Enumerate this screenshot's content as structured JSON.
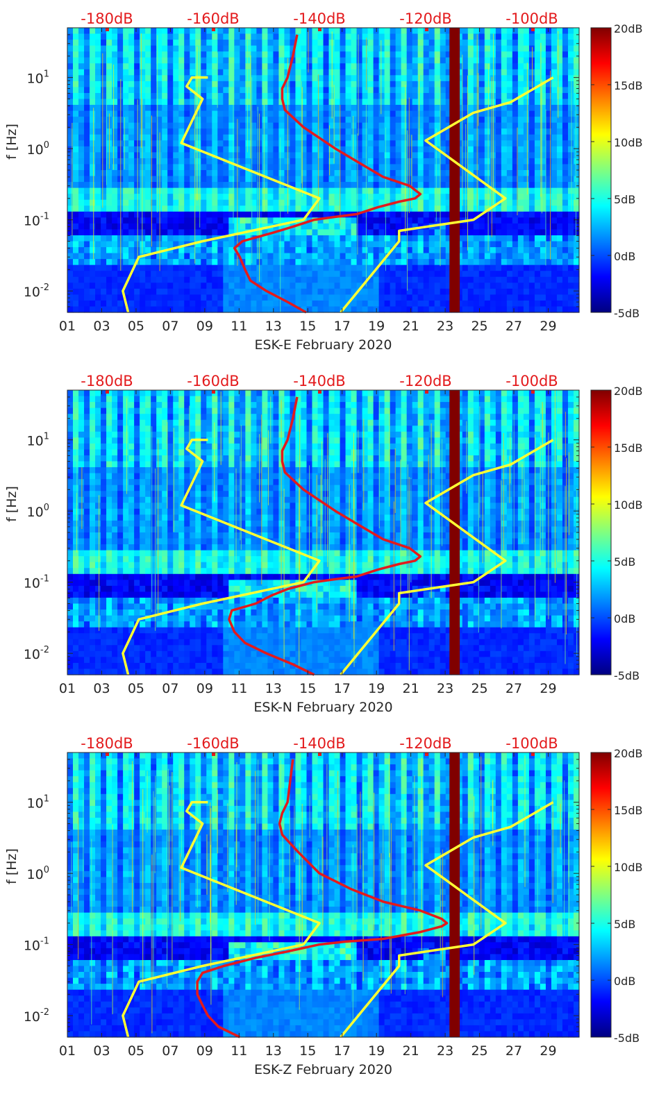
{
  "figure": {
    "colors": {
      "red_line": "#e31a1c",
      "yellow_line": "#ffff33",
      "top_label": "#e31a1c",
      "gap_band": "#800000"
    },
    "colormap": [
      "#000080",
      "#0000ff",
      "#0080ff",
      "#00ffff",
      "#80ff80",
      "#ffff00",
      "#ff8000",
      "#ff0000",
      "#800000"
    ]
  },
  "chart_data": [
    {
      "type": "heatmap",
      "title": "ESK-E February 2020",
      "xlabel": "ESK-E February 2020",
      "ylabel": "f [Hz]",
      "x_ticks": [
        "01",
        "03",
        "05",
        "07",
        "09",
        "11",
        "13",
        "15",
        "17",
        "19",
        "21",
        "23",
        "25",
        "27",
        "29"
      ],
      "x_range_days": [
        1,
        30.8
      ],
      "y_scale": "log",
      "y_range_hz": [
        0.005,
        50
      ],
      "y_ticks": [
        "10^-2",
        "10^-1",
        "10^0",
        "10^1"
      ],
      "top_axis_labels": [
        "-180dB",
        "-160dB",
        "-140dB",
        "-120dB",
        "-100dB"
      ],
      "colorbar": {
        "range_db": [
          -5,
          20
        ],
        "ticks": [
          "20dB",
          "15dB",
          "10dB",
          "5dB",
          "0dB",
          "-5dB"
        ]
      },
      "gap_band_days": [
        23.25,
        23.85
      ],
      "series": [
        {
          "name": "red-psd-curve",
          "color": "red",
          "x_top_units": [
            -142.5,
            -146,
            -150,
            -153,
            -154,
            -155,
            -156,
            -154.5,
            -149,
            -145,
            -141,
            -137,
            -133,
            -129,
            -125,
            -122,
            -121,
            -123,
            -128,
            -132,
            -137,
            -143,
            -146.5,
            -147,
            -147,
            -146,
            -145,
            -144.2
          ],
          "f_hz": [
            0.005,
            0.007,
            0.01,
            0.014,
            0.02,
            0.03,
            0.04,
            0.05,
            0.065,
            0.08,
            0.1,
            0.11,
            0.12,
            0.15,
            0.18,
            0.2,
            0.23,
            0.3,
            0.4,
            0.6,
            1.0,
            2.0,
            3.5,
            5,
            7,
            10,
            20,
            40
          ]
        },
        {
          "name": "yellow-noise-model-low",
          "color": "yellow",
          "x_top_units": [
            -176,
            -177,
            -174,
            -162,
            -143,
            -140,
            -166,
            -162,
            -165,
            -164,
            -161,
            -161
          ],
          "f_hz": [
            0.005,
            0.01,
            0.03,
            0.05,
            0.1,
            0.2,
            1.2,
            5,
            7.5,
            10,
            10,
            10
          ]
        },
        {
          "name": "yellow-noise-model-high",
          "color": "yellow",
          "x_top_units": [
            -136,
            -125,
            -125,
            -111,
            -105,
            -120,
            -111,
            -104,
            -96
          ],
          "f_hz": [
            0.005,
            0.05,
            0.07,
            0.1,
            0.2,
            1.3,
            3.2,
            4.5,
            10
          ]
        }
      ]
    },
    {
      "type": "heatmap",
      "title": "ESK-N February 2020",
      "xlabel": "ESK-N February 2020",
      "ylabel": "f [Hz]",
      "x_ticks": [
        "01",
        "03",
        "05",
        "07",
        "09",
        "11",
        "13",
        "15",
        "17",
        "19",
        "21",
        "23",
        "25",
        "27",
        "29"
      ],
      "x_range_days": [
        1,
        30.8
      ],
      "y_scale": "log",
      "y_range_hz": [
        0.005,
        50
      ],
      "y_ticks": [
        "10^-2",
        "10^-1",
        "10^0",
        "10^1"
      ],
      "top_axis_labels": [
        "-180dB",
        "-160dB",
        "-140dB",
        "-120dB",
        "-100dB"
      ],
      "colorbar": {
        "range_db": [
          -5,
          20
        ],
        "ticks": [
          "20dB",
          "15dB",
          "10dB",
          "5dB",
          "0dB",
          "-5dB"
        ]
      },
      "gap_band_days": [
        23.25,
        23.85
      ],
      "series": [
        {
          "name": "red-psd-curve",
          "color": "red",
          "x_top_units": [
            -141,
            -145,
            -150,
            -154,
            -156,
            -157,
            -156.5,
            -152,
            -149,
            -146,
            -141,
            -137,
            -133,
            -129,
            -125,
            -122,
            -121,
            -123,
            -128,
            -132,
            -137,
            -143,
            -146.5,
            -147,
            -147,
            -146,
            -145,
            -144.2
          ],
          "f_hz": [
            0.005,
            0.007,
            0.01,
            0.014,
            0.02,
            0.03,
            0.04,
            0.05,
            0.065,
            0.08,
            0.1,
            0.11,
            0.12,
            0.15,
            0.18,
            0.2,
            0.23,
            0.3,
            0.4,
            0.6,
            1.0,
            2.0,
            3.5,
            5,
            7,
            10,
            20,
            40
          ]
        },
        {
          "name": "yellow-noise-model-low",
          "color": "yellow",
          "x_top_units": [
            -176,
            -177,
            -174,
            -162,
            -143,
            -140,
            -166,
            -162,
            -165,
            -164,
            -161,
            -161
          ],
          "f_hz": [
            0.005,
            0.01,
            0.03,
            0.05,
            0.1,
            0.2,
            1.2,
            5,
            7.5,
            10,
            10,
            10
          ]
        },
        {
          "name": "yellow-noise-model-high",
          "color": "yellow",
          "x_top_units": [
            -136,
            -125,
            -125,
            -111,
            -105,
            -120,
            -111,
            -104,
            -96
          ],
          "f_hz": [
            0.005,
            0.05,
            0.07,
            0.1,
            0.2,
            1.3,
            3.2,
            4.5,
            10
          ]
        }
      ]
    },
    {
      "type": "heatmap",
      "title": "ESK-Z February 2020",
      "xlabel": "ESK-Z February 2020",
      "ylabel": "f [Hz]",
      "x_ticks": [
        "01",
        "03",
        "05",
        "07",
        "09",
        "11",
        "13",
        "15",
        "17",
        "19",
        "21",
        "23",
        "25",
        "27",
        "29"
      ],
      "x_range_days": [
        1,
        30.8
      ],
      "y_scale": "log",
      "y_range_hz": [
        0.005,
        50
      ],
      "y_ticks": [
        "10^-2",
        "10^-1",
        "10^0",
        "10^1"
      ],
      "top_axis_labels": [
        "-180dB",
        "-160dB",
        "-140dB",
        "-120dB",
        "-100dB"
      ],
      "colorbar": {
        "range_db": [
          -5,
          20
        ],
        "ticks": [
          "20dB",
          "15dB",
          "10dB",
          "5dB",
          "0dB",
          "-5dB"
        ]
      },
      "gap_band_days": [
        23.25,
        23.85
      ],
      "series": [
        {
          "name": "red-psd-curve",
          "color": "red",
          "x_top_units": [
            -155,
            -159,
            -161,
            -162,
            -163,
            -163,
            -162,
            -158,
            -152,
            -146,
            -140,
            -135,
            -128,
            -121,
            -117,
            -116,
            -117,
            -121,
            -128,
            -134,
            -140,
            -144,
            -147,
            -147.5,
            -147,
            -146,
            -145.5,
            -145
          ],
          "f_hz": [
            0.005,
            0.007,
            0.01,
            0.014,
            0.02,
            0.03,
            0.04,
            0.05,
            0.065,
            0.08,
            0.1,
            0.11,
            0.12,
            0.15,
            0.18,
            0.2,
            0.23,
            0.3,
            0.4,
            0.6,
            1.0,
            2.0,
            3.5,
            5,
            7,
            10,
            20,
            40
          ]
        },
        {
          "name": "yellow-noise-model-low",
          "color": "yellow",
          "x_top_units": [
            -176,
            -177,
            -174,
            -162,
            -143,
            -140,
            -166,
            -162,
            -165,
            -164,
            -161,
            -161
          ],
          "f_hz": [
            0.005,
            0.01,
            0.03,
            0.05,
            0.1,
            0.2,
            1.2,
            5,
            7.5,
            10,
            10,
            10
          ]
        },
        {
          "name": "yellow-noise-model-high",
          "color": "yellow",
          "x_top_units": [
            -136,
            -125,
            -125,
            -111,
            -105,
            -120,
            -111,
            -104,
            -96
          ],
          "f_hz": [
            0.005,
            0.05,
            0.07,
            0.1,
            0.2,
            1.3,
            3.2,
            4.5,
            10
          ]
        }
      ]
    }
  ]
}
